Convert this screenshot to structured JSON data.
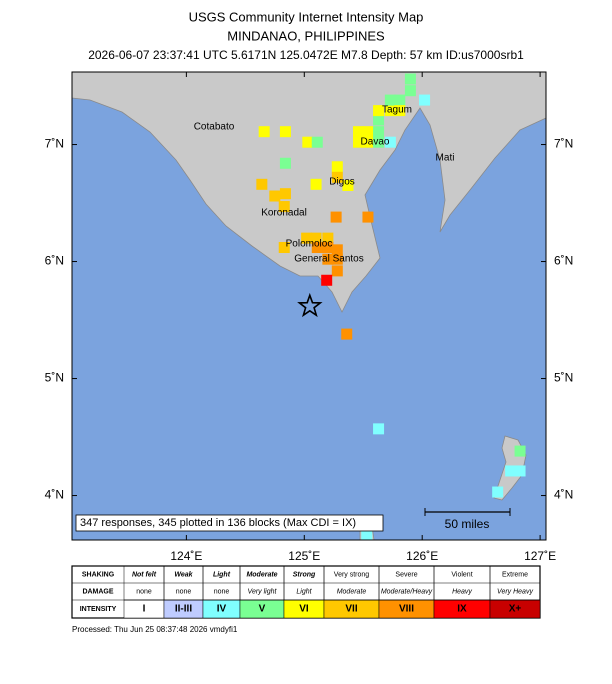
{
  "header": {
    "title": "USGS Community Internet Intensity Map",
    "region": "MINDANAO, PHILIPPINES",
    "event": "2026-06-07 23:37:41 UTC 5.6171N 125.0472E M7.8 Depth: 57 km ID:us7000srb1"
  },
  "map": {
    "xlim": [
      123.03,
      127.05
    ],
    "ylim": [
      3.62,
      7.62
    ],
    "xticks": [
      {
        "value": 124,
        "label": "124˚E"
      },
      {
        "value": 125,
        "label": "125˚E"
      },
      {
        "value": 126,
        "label": "126˚E"
      },
      {
        "value": 127,
        "label": "127˚E"
      }
    ],
    "yticks": [
      {
        "value": 4,
        "label": "4˚N"
      },
      {
        "value": 5,
        "label": "5˚N"
      },
      {
        "value": 6,
        "label": "6˚N"
      },
      {
        "value": 7,
        "label": "7˚N"
      }
    ],
    "epicenter": {
      "lon": 125.0472,
      "lat": 5.6171
    },
    "places": [
      "Cotabato",
      "Tagum",
      "Davao",
      "Mati",
      "Digos",
      "Koronadal",
      "Polomoloc",
      "General Santos"
    ],
    "blocks": {
      "lon": [
        124.66,
        124.84,
        125.03,
        125.11,
        124.84,
        125.28,
        125.28,
        125.1,
        124.64,
        124.84,
        124.75,
        124.83,
        125.27,
        125.54,
        125.37,
        125.02,
        125.1,
        125.2,
        124.83,
        125.11,
        125.2,
        125.28,
        125.28,
        125.2,
        125.28,
        125.19,
        125.36,
        125.63,
        125.53,
        125.46,
        125.54,
        125.63,
        125.63,
        125.73,
        125.73,
        125.81,
        125.9,
        125.9,
        125.73,
        125.54,
        125.63,
        125.46,
        126.02,
        125.81,
        125.63,
        126.83,
        126.75,
        126.83,
        126.64
      ],
      "lat": [
        7.11,
        7.11,
        7.02,
        7.02,
        6.84,
        6.81,
        6.72,
        6.66,
        6.66,
        6.58,
        6.56,
        6.47,
        6.38,
        6.38,
        6.65,
        6.2,
        6.2,
        6.2,
        6.12,
        6.12,
        6.12,
        6.1,
        6.02,
        6.02,
        5.92,
        5.84,
        5.38,
        4.57,
        3.66,
        7.11,
        7.11,
        7.21,
        7.29,
        7.29,
        7.38,
        7.38,
        7.46,
        7.56,
        7.02,
        7.02,
        7.02,
        7.02,
        7.38,
        7.29,
        7.11,
        4.38,
        4.21,
        4.21,
        4.03
      ],
      "intensity": [
        "VI",
        "VI",
        "VI",
        "V",
        "V",
        "VI",
        "VII",
        "VI",
        "VII",
        "VII",
        "VII",
        "VII",
        "VIII",
        "VIII",
        "VI",
        "VII",
        "VII",
        "VII",
        "VII",
        "VIII",
        "VIII",
        "VIII",
        "VIII",
        "VIII",
        "VIII",
        "IX",
        "VIII",
        "IV",
        "IV",
        "VI",
        "VI",
        "V",
        "VI",
        "VI",
        "V",
        "V",
        "V",
        "V",
        "IV",
        "VI",
        "V",
        "VI",
        "IV",
        "VI",
        "V",
        "V",
        "IV",
        "IV",
        "IV"
      ]
    },
    "summary": "347 responses, 345 plotted in 136 blocks (Max CDI = IX)",
    "scale_label": "50 miles"
  },
  "legend": {
    "row_labels": [
      "SHAKING",
      "DAMAGE",
      "INTENSITY"
    ],
    "columns": [
      {
        "shaking": "Not felt",
        "damage": "none",
        "intensity": "I",
        "color": "#ffffff"
      },
      {
        "shaking": "Weak",
        "damage": "none",
        "intensity": "II-III",
        "color": "#bfccff"
      },
      {
        "shaking": "Light",
        "damage": "none",
        "intensity": "IV",
        "color": "#80ffff"
      },
      {
        "shaking": "Moderate",
        "damage": "Very light",
        "intensity": "V",
        "color": "#7aff93"
      },
      {
        "shaking": "Strong",
        "damage": "Light",
        "intensity": "VI",
        "color": "#ffff00"
      },
      {
        "shaking": "Very strong",
        "damage": "Moderate",
        "intensity": "VII",
        "color": "#ffc800"
      },
      {
        "shaking": "Severe",
        "damage": "Moderate/Heavy",
        "intensity": "VIII",
        "color": "#ff9100"
      },
      {
        "shaking": "Violent",
        "damage": "Heavy",
        "intensity": "IX",
        "color": "#ff0000"
      },
      {
        "shaking": "Extreme",
        "damage": "Very Heavy",
        "intensity": "X+",
        "color": "#c80000"
      }
    ]
  },
  "footer": "Processed: Thu Jun 25 08:37:48 2026 vmdyfi1"
}
